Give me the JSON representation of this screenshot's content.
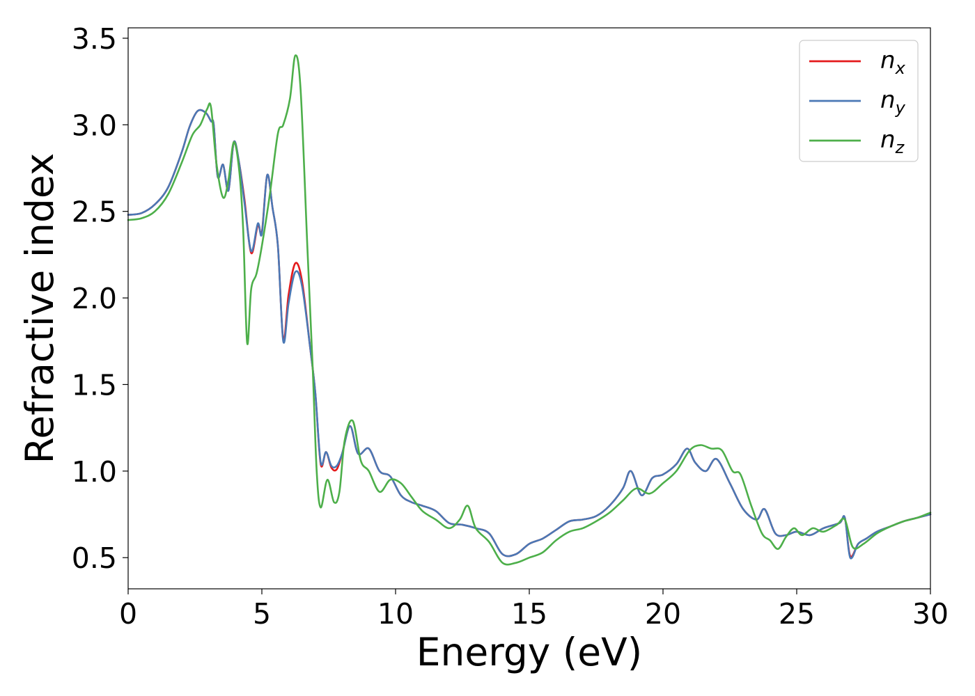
{
  "chart_data": {
    "type": "line",
    "title": "",
    "xlabel": "Energy (eV)",
    "ylabel": "Refractive index",
    "xlim": [
      0,
      30
    ],
    "ylim": [
      0.32,
      3.56
    ],
    "xticks": [
      0,
      5,
      10,
      15,
      20,
      25,
      30
    ],
    "xtick_labels": [
      "0",
      "5",
      "10",
      "15",
      "20",
      "25",
      "30"
    ],
    "yticks": [
      0.5,
      1.0,
      1.5,
      2.0,
      2.5,
      3.0,
      3.5
    ],
    "ytick_labels": [
      "0.5",
      "1.0",
      "1.5",
      "2.0",
      "2.5",
      "3.0",
      "3.5"
    ],
    "grid": false,
    "legend_position": "top-right",
    "series": [
      {
        "name": "n_x",
        "legend_base": "n",
        "legend_sub": "x",
        "color": "#e41a1c",
        "x": [
          0,
          0.5,
          1.0,
          1.5,
          2.0,
          2.3,
          2.6,
          2.9,
          3.1,
          3.2,
          3.35,
          3.55,
          3.75,
          3.95,
          4.15,
          4.35,
          4.6,
          4.85,
          5.0,
          5.2,
          5.4,
          5.6,
          5.8,
          6.0,
          6.25,
          6.5,
          6.8,
          7.0,
          7.2,
          7.4,
          7.6,
          7.8,
          8.0,
          8.3,
          8.6,
          9.0,
          9.4,
          9.8,
          10.2,
          10.6,
          11.0,
          11.5,
          12.0,
          12.5,
          13.0,
          13.5,
          14.0,
          14.5,
          15.0,
          15.5,
          16.0,
          16.5,
          17.0,
          17.5,
          18.0,
          18.5,
          18.8,
          19.2,
          19.6,
          20.0,
          20.5,
          20.9,
          21.2,
          21.6,
          22.0,
          22.5,
          23.0,
          23.5,
          23.8,
          24.2,
          24.6,
          25.0,
          25.5,
          26.0,
          26.6,
          26.8,
          27.0,
          27.3,
          27.6,
          28.0,
          28.5,
          29.0,
          29.5,
          30.0
        ],
        "y": [
          2.48,
          2.49,
          2.54,
          2.64,
          2.84,
          2.99,
          3.08,
          3.07,
          3.02,
          3.0,
          2.7,
          2.77,
          2.62,
          2.9,
          2.78,
          2.57,
          2.26,
          2.42,
          2.38,
          2.71,
          2.52,
          2.3,
          1.76,
          2.02,
          2.2,
          2.1,
          1.72,
          1.45,
          1.04,
          1.11,
          1.02,
          1.01,
          1.1,
          1.26,
          1.1,
          1.13,
          1.0,
          0.97,
          0.86,
          0.82,
          0.8,
          0.77,
          0.7,
          0.69,
          0.67,
          0.64,
          0.52,
          0.52,
          0.58,
          0.61,
          0.66,
          0.71,
          0.72,
          0.74,
          0.8,
          0.9,
          1.0,
          0.86,
          0.96,
          0.98,
          1.04,
          1.13,
          1.05,
          1.0,
          1.07,
          0.93,
          0.78,
          0.72,
          0.78,
          0.64,
          0.63,
          0.65,
          0.63,
          0.67,
          0.7,
          0.73,
          0.51,
          0.58,
          0.61,
          0.65,
          0.68,
          0.71,
          0.73,
          0.75
        ]
      },
      {
        "name": "n_y",
        "legend_base": "n",
        "legend_sub": "y",
        "color": "#4a78b5",
        "x": [
          0,
          0.5,
          1.0,
          1.5,
          2.0,
          2.3,
          2.6,
          2.9,
          3.1,
          3.2,
          3.35,
          3.55,
          3.75,
          3.95,
          4.15,
          4.35,
          4.6,
          4.85,
          5.0,
          5.2,
          5.4,
          5.6,
          5.8,
          6.0,
          6.25,
          6.5,
          6.8,
          7.0,
          7.2,
          7.4,
          7.6,
          7.8,
          8.0,
          8.3,
          8.6,
          9.0,
          9.4,
          9.8,
          10.2,
          10.6,
          11.0,
          11.5,
          12.0,
          12.5,
          13.0,
          13.5,
          14.0,
          14.5,
          15.0,
          15.5,
          16.0,
          16.5,
          17.0,
          17.5,
          18.0,
          18.5,
          18.8,
          19.2,
          19.6,
          20.0,
          20.5,
          20.9,
          21.2,
          21.6,
          22.0,
          22.5,
          23.0,
          23.5,
          23.8,
          24.2,
          24.6,
          25.0,
          25.5,
          26.0,
          26.6,
          26.8,
          27.0,
          27.3,
          27.6,
          28.0,
          28.5,
          29.0,
          29.5,
          30.0
        ],
        "y": [
          2.48,
          2.49,
          2.54,
          2.64,
          2.84,
          2.99,
          3.08,
          3.07,
          3.02,
          3.0,
          2.7,
          2.77,
          2.62,
          2.9,
          2.78,
          2.55,
          2.27,
          2.43,
          2.37,
          2.71,
          2.52,
          2.3,
          1.75,
          1.97,
          2.15,
          2.07,
          1.72,
          1.45,
          1.05,
          1.11,
          1.03,
          1.03,
          1.1,
          1.26,
          1.1,
          1.13,
          1.0,
          0.97,
          0.86,
          0.82,
          0.8,
          0.77,
          0.7,
          0.69,
          0.67,
          0.64,
          0.52,
          0.52,
          0.58,
          0.61,
          0.66,
          0.71,
          0.72,
          0.74,
          0.8,
          0.9,
          1.0,
          0.86,
          0.96,
          0.98,
          1.04,
          1.13,
          1.05,
          1.0,
          1.07,
          0.93,
          0.78,
          0.72,
          0.78,
          0.64,
          0.63,
          0.65,
          0.63,
          0.67,
          0.7,
          0.73,
          0.5,
          0.58,
          0.61,
          0.65,
          0.68,
          0.71,
          0.73,
          0.75
        ]
      },
      {
        "name": "n_z",
        "legend_base": "n",
        "legend_sub": "z",
        "color": "#4daf4a",
        "x": [
          0,
          0.5,
          1.0,
          1.5,
          2.0,
          2.4,
          2.7,
          2.95,
          3.1,
          3.3,
          3.55,
          3.75,
          3.95,
          4.15,
          4.3,
          4.45,
          4.6,
          4.8,
          5.0,
          5.3,
          5.6,
          5.8,
          6.05,
          6.25,
          6.45,
          6.7,
          6.9,
          7.05,
          7.2,
          7.45,
          7.7,
          7.9,
          8.1,
          8.4,
          8.7,
          9.0,
          9.4,
          9.8,
          10.2,
          10.6,
          11.0,
          11.5,
          12.0,
          12.4,
          12.7,
          13.0,
          13.5,
          14.0,
          14.5,
          15.0,
          15.5,
          16.0,
          16.5,
          17.0,
          17.5,
          18.0,
          18.5,
          19.0,
          19.5,
          20.0,
          20.5,
          21.0,
          21.4,
          21.8,
          22.2,
          22.6,
          22.9,
          23.3,
          23.7,
          24.0,
          24.3,
          24.6,
          24.9,
          25.2,
          25.6,
          26.0,
          26.5,
          26.8,
          27.1,
          27.5,
          28.0,
          28.5,
          29.0,
          29.5,
          30.0
        ],
        "y": [
          2.45,
          2.46,
          2.5,
          2.6,
          2.78,
          2.94,
          3.0,
          3.09,
          3.1,
          2.78,
          2.58,
          2.68,
          2.9,
          2.74,
          2.4,
          1.74,
          2.05,
          2.14,
          2.3,
          2.6,
          2.95,
          3.0,
          3.15,
          3.4,
          3.2,
          2.3,
          1.6,
          1.0,
          0.79,
          0.95,
          0.82,
          0.88,
          1.18,
          1.29,
          1.06,
          1.0,
          0.88,
          0.95,
          0.93,
          0.85,
          0.77,
          0.72,
          0.67,
          0.72,
          0.8,
          0.67,
          0.59,
          0.47,
          0.47,
          0.5,
          0.53,
          0.6,
          0.65,
          0.67,
          0.71,
          0.76,
          0.83,
          0.9,
          0.87,
          0.93,
          1.0,
          1.12,
          1.15,
          1.13,
          1.12,
          1.0,
          0.98,
          0.8,
          0.64,
          0.6,
          0.55,
          0.62,
          0.67,
          0.63,
          0.67,
          0.65,
          0.69,
          0.72,
          0.56,
          0.58,
          0.64,
          0.68,
          0.71,
          0.73,
          0.76
        ]
      }
    ]
  }
}
